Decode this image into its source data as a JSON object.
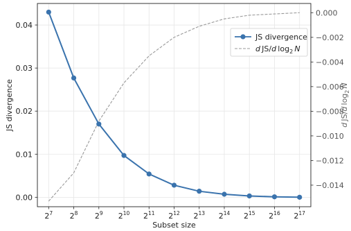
{
  "chart_data": {
    "type": "line",
    "x": [
      7,
      8,
      9,
      10,
      11,
      12,
      13,
      14,
      15,
      16,
      17
    ],
    "x_tick_labels": [
      {
        "base": "2",
        "exp": "7"
      },
      {
        "base": "2",
        "exp": "8"
      },
      {
        "base": "2",
        "exp": "9"
      },
      {
        "base": "2",
        "exp": "10"
      },
      {
        "base": "2",
        "exp": "11"
      },
      {
        "base": "2",
        "exp": "12"
      },
      {
        "base": "2",
        "exp": "13"
      },
      {
        "base": "2",
        "exp": "14"
      },
      {
        "base": "2",
        "exp": "15"
      },
      {
        "base": "2",
        "exp": "16"
      },
      {
        "base": "2",
        "exp": "17"
      }
    ],
    "xlabel": "Subset size",
    "x_scale": "log2",
    "xlim": [
      6.55,
      17.45
    ],
    "ylabel": "JS divergence",
    "ylim": [
      -0.0022,
      0.045
    ],
    "y_ticks": [
      0.0,
      0.01,
      0.02,
      0.03,
      0.04
    ],
    "y_tick_labels": [
      "0.00",
      "0.01",
      "0.02",
      "0.03",
      "0.04"
    ],
    "y2label": "d JS/d log₂ N",
    "y2lim": [
      -0.01575,
      0.00075
    ],
    "y2_ticks": [
      0.0,
      -0.002,
      -0.004,
      -0.006,
      -0.008,
      -0.01,
      -0.012,
      -0.014
    ],
    "y2_tick_labels": [
      "0.000",
      "−0.002",
      "−0.004",
      "−0.006",
      "−0.008",
      "−0.010",
      "−0.012",
      "−0.014"
    ],
    "grid": true,
    "legend_position": "upper-right",
    "series": [
      {
        "name": "JS divergence",
        "axis": "left",
        "style": "solid-with-markers",
        "color": "#3a73ad",
        "values": [
          0.043,
          0.0277,
          0.017,
          0.0097,
          0.0054,
          0.0028,
          0.0014,
          0.0007,
          0.0003,
          0.0001,
          0.0
        ]
      },
      {
        "name": "d JS/d log₂ N",
        "axis": "right",
        "style": "dashed",
        "color": "#999999",
        "values": [
          -0.0153,
          -0.013,
          -0.0088,
          -0.0057,
          -0.0035,
          -0.002,
          -0.0011,
          -0.0005,
          -0.0002,
          -0.0001,
          0.0
        ]
      }
    ]
  },
  "colors": {
    "grid": "#e6e6e6",
    "frame": "#222222",
    "primary_line": "#3a73ad",
    "secondary_line": "#999999"
  }
}
